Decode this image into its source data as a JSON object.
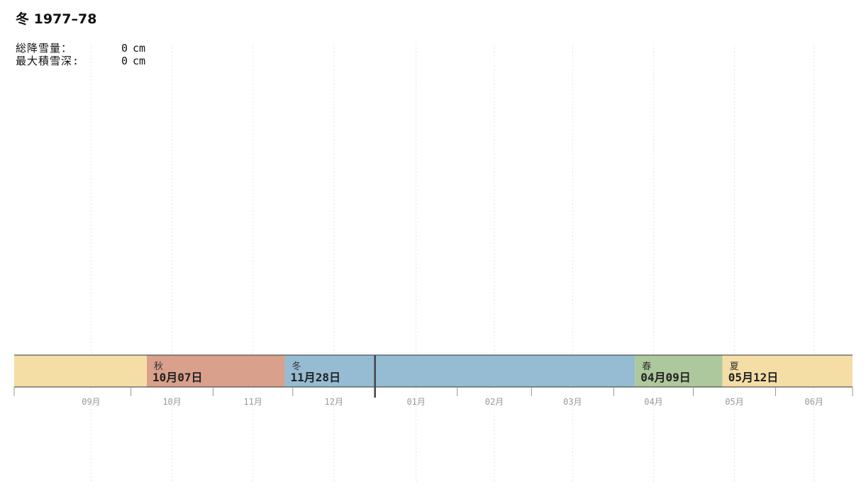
{
  "chart_data": {
    "type": "timeline",
    "title": "冬 1977–78",
    "stats": [
      {
        "label": "総降雪量：",
        "value": "0",
        "unit": "cm"
      },
      {
        "label": "最大積雪深:",
        "value": "0",
        "unit": "cm"
      }
    ],
    "x_range": [
      "1977-08-18",
      "1978-06-30"
    ],
    "months": [
      {
        "label": "09月",
        "start": "1977-09-01",
        "end": "1977-10-01"
      },
      {
        "label": "10月",
        "start": "1977-10-01",
        "end": "1977-11-01"
      },
      {
        "label": "11月",
        "start": "1977-11-01",
        "end": "1977-12-01"
      },
      {
        "label": "12月",
        "start": "1977-12-01",
        "end": "1978-01-01"
      },
      {
        "label": "01月",
        "start": "1978-01-01",
        "end": "1978-02-01"
      },
      {
        "label": "02月",
        "start": "1978-02-01",
        "end": "1978-03-01"
      },
      {
        "label": "03月",
        "start": "1978-03-01",
        "end": "1978-04-01"
      },
      {
        "label": "04月",
        "start": "1978-04-01",
        "end": "1978-05-01"
      },
      {
        "label": "05月",
        "start": "1978-05-01",
        "end": "1978-06-01"
      },
      {
        "label": "06月",
        "start": "1978-06-01",
        "end": "1978-07-01"
      }
    ],
    "seasons": [
      {
        "name": "",
        "date_label": "",
        "start": "1977-08-18",
        "end": "1977-10-07",
        "color": "#f5dea6"
      },
      {
        "name": "秋",
        "date_label": "10月07日",
        "start": "1977-10-07",
        "end": "1977-11-28",
        "color": "#d9a08b"
      },
      {
        "name": "冬",
        "date_label": "11月28日",
        "start": "1977-11-28",
        "end": "1978-04-09",
        "color": "#95bcd2"
      },
      {
        "name": "春",
        "date_label": "04月09日",
        "start": "1978-04-09",
        "end": "1978-05-12",
        "color": "#adc89c"
      },
      {
        "name": "夏",
        "date_label": "05月12日",
        "start": "1978-05-12",
        "end": "1978-06-30",
        "color": "#f5dea6"
      }
    ],
    "marker_date": "1978-01-01",
    "grid": true,
    "snowfall_series": []
  }
}
